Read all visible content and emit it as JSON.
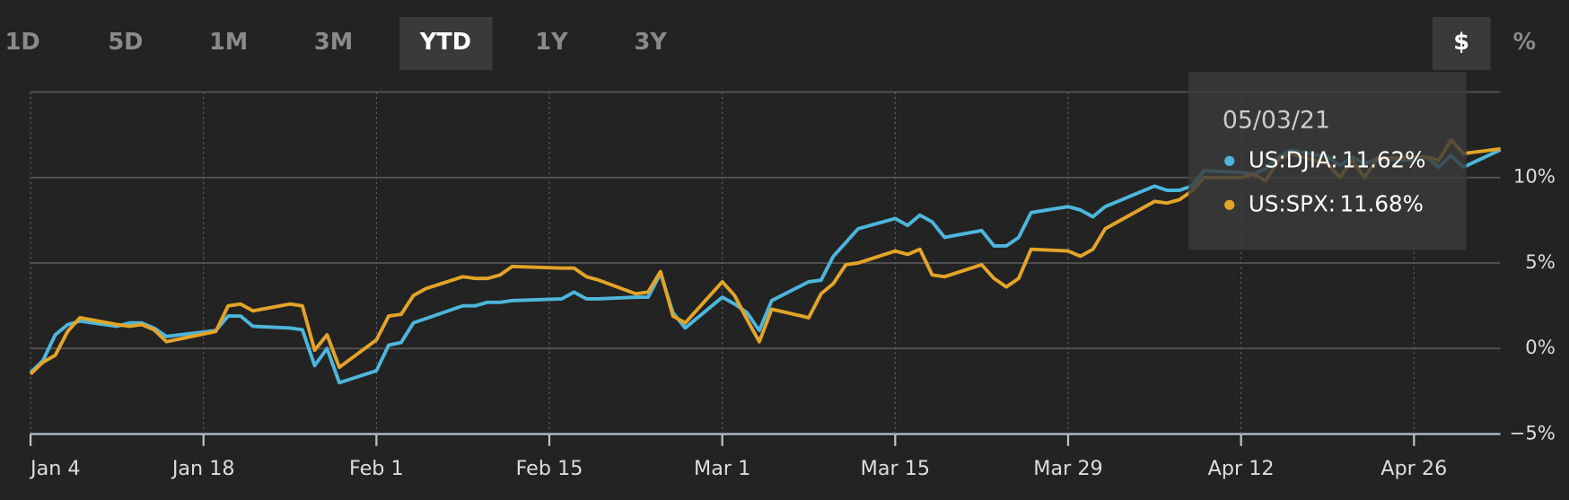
{
  "ranges": [
    "1D",
    "5D",
    "1M",
    "3M",
    "YTD",
    "1Y",
    "3Y"
  ],
  "selected_range": 4,
  "units": [
    "$",
    "%"
  ],
  "selected_unit": 0,
  "tooltip": {
    "date": "05/03/21",
    "labels": [
      "11.62%",
      "11.68%"
    ]
  },
  "chart_data": {
    "type": "line",
    "x": [
      "Jan 4",
      "Jan 5",
      "Jan 6",
      "Jan 7",
      "Jan 8",
      "Jan 11",
      "Jan 12",
      "Jan 13",
      "Jan 14",
      "Jan 15",
      "Jan 19",
      "Jan 20",
      "Jan 21",
      "Jan 22",
      "Jan 25",
      "Jan 26",
      "Jan 27",
      "Jan 28",
      "Jan 29",
      "Feb 1",
      "Feb 2",
      "Feb 3",
      "Feb 4",
      "Feb 5",
      "Feb 8",
      "Feb 9",
      "Feb 10",
      "Feb 11",
      "Feb 12",
      "Feb 16",
      "Feb 17",
      "Feb 18",
      "Feb 19",
      "Feb 22",
      "Feb 23",
      "Feb 24",
      "Feb 25",
      "Feb 26",
      "Mar 1",
      "Mar 2",
      "Mar 3",
      "Mar 4",
      "Mar 5",
      "Mar 8",
      "Mar 9",
      "Mar 10",
      "Mar 11",
      "Mar 12",
      "Mar 15",
      "Mar 16",
      "Mar 17",
      "Mar 18",
      "Mar 19",
      "Mar 22",
      "Mar 23",
      "Mar 24",
      "Mar 25",
      "Mar 26",
      "Mar 29",
      "Mar 30",
      "Mar 31",
      "Apr 1",
      "Apr 5",
      "Apr 6",
      "Apr 7",
      "Apr 8",
      "Apr 9",
      "Apr 12",
      "Apr 13",
      "Apr 14",
      "Apr 15",
      "Apr 16",
      "Apr 19",
      "Apr 20",
      "Apr 21",
      "Apr 22",
      "Apr 23",
      "Apr 26",
      "Apr 27",
      "Apr 28",
      "Apr 29",
      "Apr 30",
      "May 3"
    ],
    "series": [
      {
        "name": "US:DJIA:",
        "color": "#4db6dc",
        "values": [
          -1.4,
          -0.7,
          0.8,
          1.4,
          1.6,
          1.3,
          1.5,
          1.5,
          1.2,
          0.7,
          1.05,
          1.9,
          1.9,
          1.3,
          1.2,
          1.1,
          -1.0,
          0.0,
          -2.0,
          -1.3,
          0.2,
          0.35,
          1.5,
          1.75,
          2.5,
          2.5,
          2.7,
          2.7,
          2.8,
          2.9,
          3.3,
          2.9,
          2.9,
          3.0,
          3.0,
          4.4,
          2.1,
          1.2,
          3.0,
          2.6,
          2.1,
          1.05,
          2.8,
          3.9,
          4.0,
          5.4,
          6.2,
          7.0,
          7.6,
          7.2,
          7.8,
          7.4,
          6.5,
          6.9,
          6.0,
          6.0,
          6.5,
          7.95,
          8.3,
          8.1,
          7.7,
          8.3,
          9.5,
          9.25,
          9.25,
          9.5,
          10.4,
          10.3,
          10.2,
          10.5,
          11.2,
          11.6,
          11.2,
          10.7,
          11.2,
          10.8,
          11.1,
          11.0,
          11.2,
          10.6,
          11.3,
          10.6,
          11.62
        ]
      },
      {
        "name": "US:SPX:",
        "color": "#e3a428",
        "values": [
          -1.5,
          -0.8,
          -0.4,
          1.0,
          1.8,
          1.4,
          1.3,
          1.4,
          1.1,
          0.4,
          1.0,
          2.5,
          2.6,
          2.2,
          2.6,
          2.5,
          -0.1,
          0.8,
          -1.1,
          0.5,
          1.9,
          2.0,
          3.1,
          3.5,
          4.2,
          4.1,
          4.1,
          4.3,
          4.8,
          4.7,
          4.7,
          4.2,
          4.0,
          3.2,
          3.3,
          4.5,
          1.9,
          1.5,
          3.9,
          3.1,
          1.7,
          0.4,
          2.3,
          1.8,
          3.2,
          3.8,
          4.9,
          5.0,
          5.7,
          5.5,
          5.8,
          4.3,
          4.2,
          4.9,
          4.1,
          3.6,
          4.1,
          5.8,
          5.7,
          5.4,
          5.8,
          7.0,
          8.6,
          8.5,
          8.7,
          9.2,
          10.0,
          10.0,
          10.2,
          9.8,
          11.0,
          11.4,
          10.8,
          10.0,
          11.0,
          10.0,
          11.1,
          11.2,
          11.2,
          11.0,
          12.2,
          11.4,
          11.68
        ]
      }
    ],
    "xlim": [
      "Jan 4",
      "May 3"
    ],
    "xticks": [
      "Jan 4",
      "Jan 18",
      "Feb 1",
      "Feb 15",
      "Mar 1",
      "Mar 15",
      "Mar 29",
      "Apr 12",
      "Apr 26"
    ],
    "ylim": [
      -5,
      15
    ],
    "yticks": [
      {
        "value": -5,
        "label": "−5%"
      },
      {
        "value": 0,
        "label": "0%"
      },
      {
        "value": 5,
        "label": "5%"
      },
      {
        "value": 10,
        "label": "10%"
      }
    ],
    "grid": true
  }
}
